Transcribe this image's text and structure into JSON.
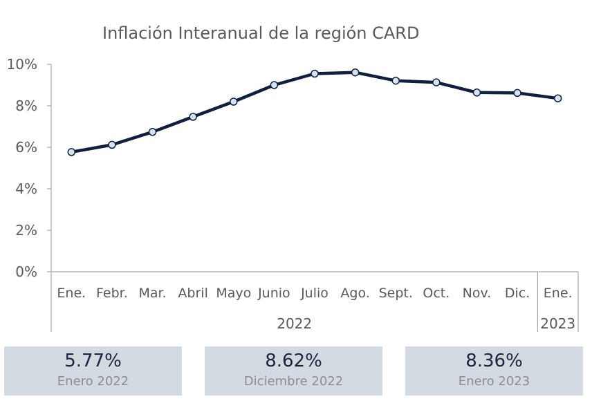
{
  "chart_data": {
    "type": "line",
    "title": "Inflación Interanual de la región CARD",
    "categories": [
      "Ene.",
      "Febr.",
      "Mar.",
      "Abril",
      "Mayo",
      "Junio",
      "Julio",
      "Ago.",
      "Sept.",
      "Oct.",
      "Nov.",
      "Dic.",
      "Ene."
    ],
    "year_groups": [
      {
        "label": "2022",
        "from": 0,
        "to": 11
      },
      {
        "label": "2023",
        "from": 12,
        "to": 12
      }
    ],
    "series": [
      {
        "values": [
          5.77,
          6.12,
          6.74,
          7.47,
          8.2,
          9.0,
          9.55,
          9.61,
          9.21,
          9.13,
          8.64,
          8.62,
          8.36
        ]
      }
    ],
    "ylim": [
      0,
      10
    ],
    "yticks": [
      "0%",
      "2%",
      "4%",
      "6%",
      "8%",
      "10%"
    ],
    "ytick_values": [
      0,
      2,
      4,
      6,
      8,
      10
    ],
    "grid": false,
    "colors": {
      "line": "#0f1f3d",
      "marker_fill": "#d9e2f1",
      "axis": "#a6a6a6"
    }
  },
  "stats": [
    {
      "value": "5.77%",
      "label": "Enero 2022"
    },
    {
      "value": "8.62%",
      "label": "Diciembre 2022"
    },
    {
      "value": "8.36%",
      "label": "Enero 2023"
    }
  ]
}
